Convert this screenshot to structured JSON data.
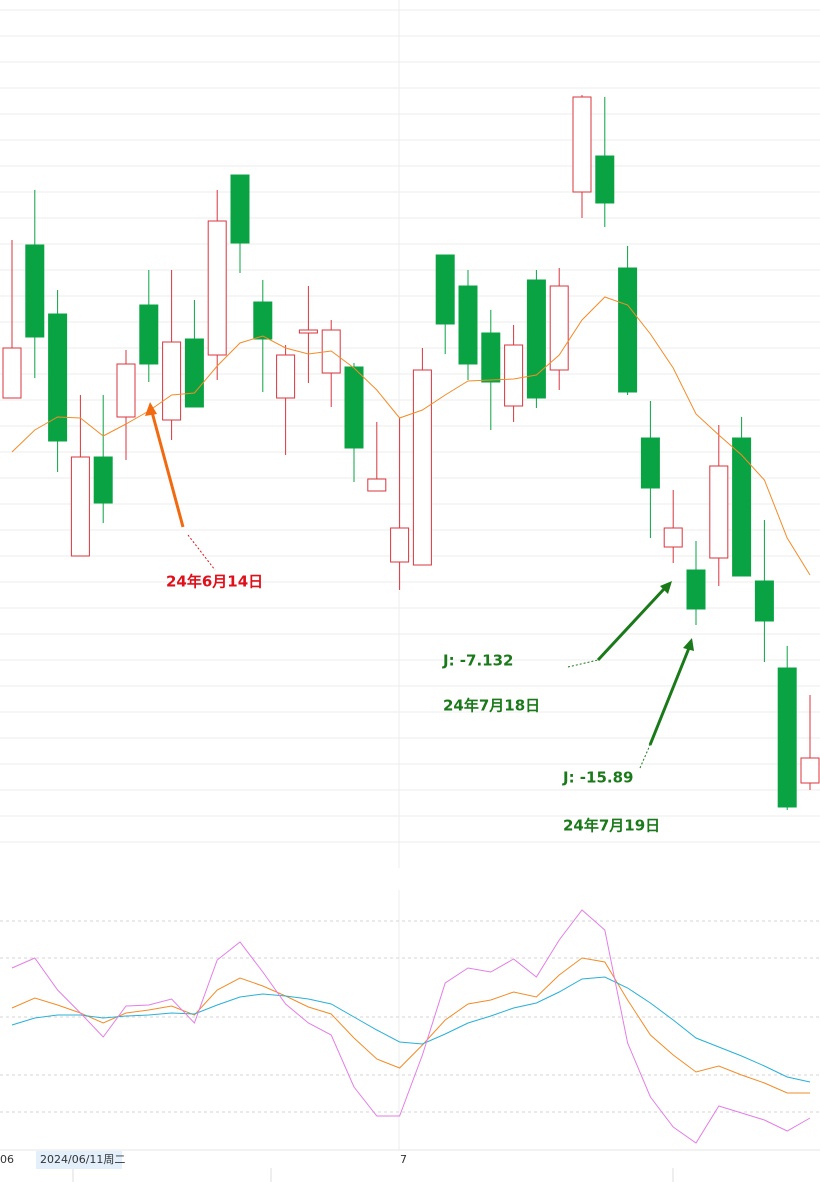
{
  "chart_data": [
    {
      "type": "candlestick",
      "up_color": "#d9363e",
      "down_color": "#0aa344",
      "ma_color": "#f28c28",
      "ylim": [
        0,
        870
      ],
      "yticks": [
        28,
        54,
        80,
        106,
        132,
        158,
        184,
        210,
        236,
        262,
        288,
        314,
        340,
        366,
        392,
        418,
        444,
        470,
        496,
        522,
        548,
        574,
        600,
        626,
        652,
        678,
        704,
        730,
        756,
        782,
        808,
        834,
        860
      ],
      "grid": true,
      "open": [
        472,
        625,
        556,
        314,
        413,
        453,
        565,
        450,
        531,
        515,
        695,
        568,
        472,
        537,
        497,
        503,
        379,
        308,
        305,
        615,
        584,
        537,
        464,
        590,
        500,
        678,
        714,
        602,
        432,
        323,
        300,
        312,
        432,
        289,
        202,
        87
      ],
      "high": [
        630,
        680,
        580,
        475,
        475,
        520,
        600,
        600,
        570,
        680,
        695,
        590,
        525,
        584,
        550,
        507,
        448,
        452,
        522,
        615,
        600,
        560,
        545,
        600,
        602,
        775,
        773,
        624,
        469,
        380,
        329,
        445,
        453,
        350,
        224,
        175
      ],
      "low": [
        472,
        492,
        398,
        314,
        347,
        410,
        488,
        430,
        463,
        490,
        597,
        478,
        415,
        487,
        463,
        388,
        379,
        280,
        305,
        516,
        490,
        440,
        448,
        462,
        480,
        652,
        643,
        475,
        332,
        307,
        245,
        284,
        294,
        208,
        60,
        80
      ],
      "close": [
        522,
        533,
        429,
        413,
        367,
        506,
        506,
        528,
        463,
        649,
        627,
        531,
        515,
        540,
        540,
        422,
        391,
        342,
        500,
        546,
        506,
        488,
        525,
        472,
        584,
        773,
        667,
        478,
        382,
        342,
        261,
        404,
        294,
        249,
        63,
        112
      ],
      "ma": [
        418,
        440,
        453,
        452,
        434,
        446,
        459,
        475,
        477,
        504,
        527,
        534,
        522,
        516,
        519,
        502,
        480,
        452,
        460,
        475,
        489,
        490,
        491,
        495,
        515,
        550,
        573,
        565,
        536,
        502,
        456,
        435,
        415,
        390,
        332,
        295
      ],
      "annotations": [
        {
          "text": "24年6月14日",
          "color": "#e0101a"
        },
        {
          "text": "J:  -7.132",
          "color": "#1a7a1a"
        },
        {
          "text": "24年7月18日",
          "color": "#1a7a1a"
        },
        {
          "text": "J:  -15.89",
          "color": "#1a7a1a"
        },
        {
          "text": "24年7月19日",
          "color": "#1a7a1a"
        }
      ]
    },
    {
      "type": "line",
      "ylim": [
        0,
        260
      ],
      "yticks": [
        38,
        75,
        133,
        192,
        229
      ],
      "grid": true,
      "xtick_labels": [
        "06",
        "2024/06/11周二",
        "7"
      ],
      "series": [
        {
          "color": "#f28c28",
          "values": [
            142,
            152,
            145,
            137,
            127,
            137,
            140,
            144,
            135,
            160,
            172,
            164,
            154,
            143,
            136,
            112,
            91,
            82,
            105,
            130,
            146,
            150,
            158,
            153,
            175,
            192,
            188,
            150,
            115,
            95,
            78,
            84,
            75,
            67,
            57,
            57
          ]
        },
        {
          "color": "#2ab0d6",
          "values": [
            125,
            132,
            135,
            135,
            132,
            134,
            135,
            137,
            136,
            145,
            153,
            156,
            154,
            151,
            146,
            133,
            120,
            108,
            106,
            116,
            127,
            134,
            142,
            147,
            158,
            171,
            173,
            162,
            147,
            130,
            112,
            103,
            94,
            84,
            73,
            68
          ]
        },
        {
          "color": "#e37ee6",
          "values": [
            182,
            192,
            160,
            137,
            113,
            144,
            145,
            151,
            127,
            190,
            208,
            178,
            146,
            127,
            115,
            63,
            34,
            34,
            95,
            167,
            182,
            178,
            191,
            173,
            210,
            240,
            220,
            107,
            53,
            23,
            7,
            44,
            37,
            30,
            19,
            32
          ]
        }
      ]
    }
  ]
}
